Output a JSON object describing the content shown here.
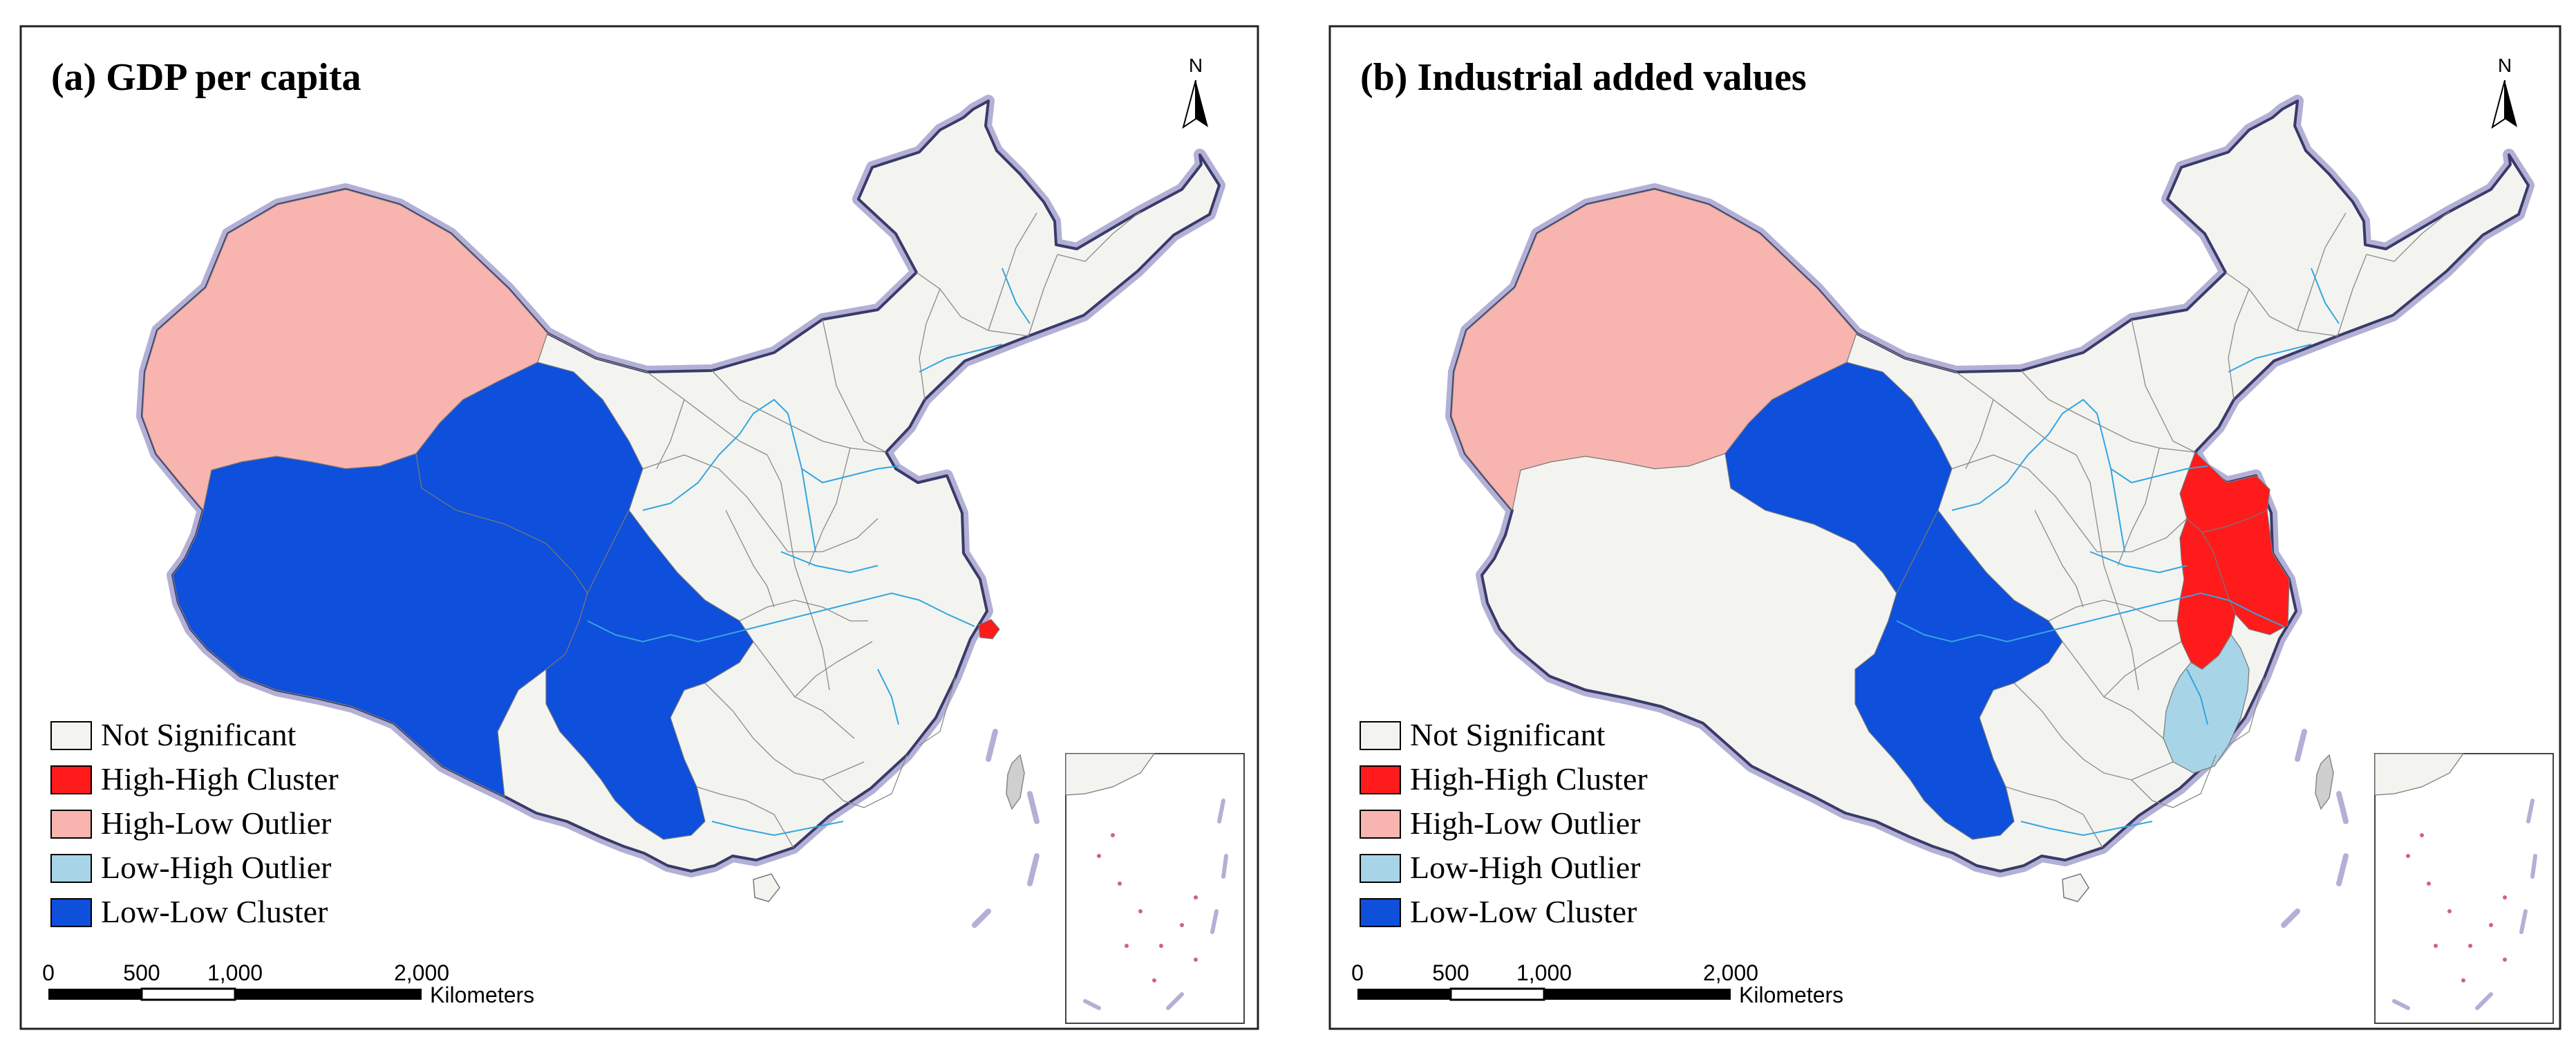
{
  "colors": {
    "not_significant": "#f3f4f0",
    "high_high": "#ff1b1b",
    "high_low": "#f8b4ae",
    "low_high": "#a7d4e6",
    "low_low": "#0e4fdc",
    "taiwan": "#cfcfcf",
    "river": "#34a5e0",
    "coast_halo": "#b3b0d6",
    "boundary": "#8a8a8a"
  },
  "north_label": "N",
  "scalebar": {
    "ticks": [
      "0",
      "500",
      "1,000",
      "2,000"
    ],
    "unit": "Kilometers"
  },
  "legend": [
    {
      "label": "Not Significant",
      "color_key": "not_significant"
    },
    {
      "label": "High-High Cluster",
      "color_key": "high_high"
    },
    {
      "label": "High-Low Outlier",
      "color_key": "high_low"
    },
    {
      "label": "Low-High Outlier",
      "color_key": "low_high"
    },
    {
      "label": "Low-Low Cluster",
      "color_key": "low_low"
    }
  ],
  "panels": [
    {
      "title": "(a) GDP per capita",
      "regions": {
        "xinjiang": "high_low",
        "tibet": "low_low",
        "qinghai": "low_low",
        "sichuan": "low_low",
        "shanghai": "high_high"
      }
    },
    {
      "title": "(b) Industrial added values",
      "regions": {
        "xinjiang": "high_low",
        "qinghai": "low_low",
        "sichuan": "low_low",
        "shandong": "high_high",
        "jiangsu": "high_high",
        "anhui": "high_high",
        "jiangxi": "low_high"
      }
    }
  ]
}
